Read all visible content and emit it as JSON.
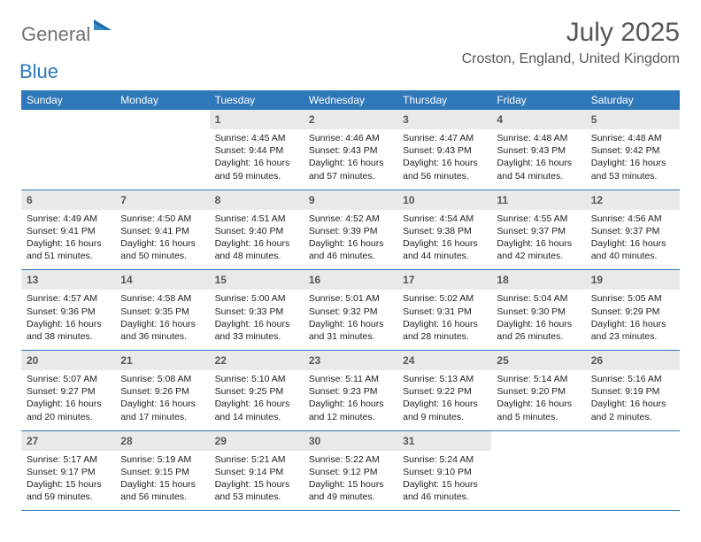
{
  "logo": {
    "word1": "General",
    "word2": "Blue",
    "tri_color": "#1f6bb0",
    "word1_color": "#6f7176",
    "word2_color": "#2e77b8"
  },
  "title": "July 2025",
  "location": "Croston, England, United Kingdom",
  "colors": {
    "header_bg": "#2e77b8",
    "daynum_bg": "#e9e9e9",
    "text": "#565656",
    "week_border": "#2e77b8"
  },
  "weekdays": [
    "Sunday",
    "Monday",
    "Tuesday",
    "Wednesday",
    "Thursday",
    "Friday",
    "Saturday"
  ],
  "weeks": [
    [
      null,
      null,
      {
        "n": "1",
        "sr": "Sunrise: 4:45 AM",
        "ss": "Sunset: 9:44 PM",
        "dl": "Daylight: 16 hours and 59 minutes."
      },
      {
        "n": "2",
        "sr": "Sunrise: 4:46 AM",
        "ss": "Sunset: 9:43 PM",
        "dl": "Daylight: 16 hours and 57 minutes."
      },
      {
        "n": "3",
        "sr": "Sunrise: 4:47 AM",
        "ss": "Sunset: 9:43 PM",
        "dl": "Daylight: 16 hours and 56 minutes."
      },
      {
        "n": "4",
        "sr": "Sunrise: 4:48 AM",
        "ss": "Sunset: 9:43 PM",
        "dl": "Daylight: 16 hours and 54 minutes."
      },
      {
        "n": "5",
        "sr": "Sunrise: 4:48 AM",
        "ss": "Sunset: 9:42 PM",
        "dl": "Daylight: 16 hours and 53 minutes."
      }
    ],
    [
      {
        "n": "6",
        "sr": "Sunrise: 4:49 AM",
        "ss": "Sunset: 9:41 PM",
        "dl": "Daylight: 16 hours and 51 minutes."
      },
      {
        "n": "7",
        "sr": "Sunrise: 4:50 AM",
        "ss": "Sunset: 9:41 PM",
        "dl": "Daylight: 16 hours and 50 minutes."
      },
      {
        "n": "8",
        "sr": "Sunrise: 4:51 AM",
        "ss": "Sunset: 9:40 PM",
        "dl": "Daylight: 16 hours and 48 minutes."
      },
      {
        "n": "9",
        "sr": "Sunrise: 4:52 AM",
        "ss": "Sunset: 9:39 PM",
        "dl": "Daylight: 16 hours and 46 minutes."
      },
      {
        "n": "10",
        "sr": "Sunrise: 4:54 AM",
        "ss": "Sunset: 9:38 PM",
        "dl": "Daylight: 16 hours and 44 minutes."
      },
      {
        "n": "11",
        "sr": "Sunrise: 4:55 AM",
        "ss": "Sunset: 9:37 PM",
        "dl": "Daylight: 16 hours and 42 minutes."
      },
      {
        "n": "12",
        "sr": "Sunrise: 4:56 AM",
        "ss": "Sunset: 9:37 PM",
        "dl": "Daylight: 16 hours and 40 minutes."
      }
    ],
    [
      {
        "n": "13",
        "sr": "Sunrise: 4:57 AM",
        "ss": "Sunset: 9:36 PM",
        "dl": "Daylight: 16 hours and 38 minutes."
      },
      {
        "n": "14",
        "sr": "Sunrise: 4:58 AM",
        "ss": "Sunset: 9:35 PM",
        "dl": "Daylight: 16 hours and 36 minutes."
      },
      {
        "n": "15",
        "sr": "Sunrise: 5:00 AM",
        "ss": "Sunset: 9:33 PM",
        "dl": "Daylight: 16 hours and 33 minutes."
      },
      {
        "n": "16",
        "sr": "Sunrise: 5:01 AM",
        "ss": "Sunset: 9:32 PM",
        "dl": "Daylight: 16 hours and 31 minutes."
      },
      {
        "n": "17",
        "sr": "Sunrise: 5:02 AM",
        "ss": "Sunset: 9:31 PM",
        "dl": "Daylight: 16 hours and 28 minutes."
      },
      {
        "n": "18",
        "sr": "Sunrise: 5:04 AM",
        "ss": "Sunset: 9:30 PM",
        "dl": "Daylight: 16 hours and 26 minutes."
      },
      {
        "n": "19",
        "sr": "Sunrise: 5:05 AM",
        "ss": "Sunset: 9:29 PM",
        "dl": "Daylight: 16 hours and 23 minutes."
      }
    ],
    [
      {
        "n": "20",
        "sr": "Sunrise: 5:07 AM",
        "ss": "Sunset: 9:27 PM",
        "dl": "Daylight: 16 hours and 20 minutes."
      },
      {
        "n": "21",
        "sr": "Sunrise: 5:08 AM",
        "ss": "Sunset: 9:26 PM",
        "dl": "Daylight: 16 hours and 17 minutes."
      },
      {
        "n": "22",
        "sr": "Sunrise: 5:10 AM",
        "ss": "Sunset: 9:25 PM",
        "dl": "Daylight: 16 hours and 14 minutes."
      },
      {
        "n": "23",
        "sr": "Sunrise: 5:11 AM",
        "ss": "Sunset: 9:23 PM",
        "dl": "Daylight: 16 hours and 12 minutes."
      },
      {
        "n": "24",
        "sr": "Sunrise: 5:13 AM",
        "ss": "Sunset: 9:22 PM",
        "dl": "Daylight: 16 hours and 9 minutes."
      },
      {
        "n": "25",
        "sr": "Sunrise: 5:14 AM",
        "ss": "Sunset: 9:20 PM",
        "dl": "Daylight: 16 hours and 5 minutes."
      },
      {
        "n": "26",
        "sr": "Sunrise: 5:16 AM",
        "ss": "Sunset: 9:19 PM",
        "dl": "Daylight: 16 hours and 2 minutes."
      }
    ],
    [
      {
        "n": "27",
        "sr": "Sunrise: 5:17 AM",
        "ss": "Sunset: 9:17 PM",
        "dl": "Daylight: 15 hours and 59 minutes."
      },
      {
        "n": "28",
        "sr": "Sunrise: 5:19 AM",
        "ss": "Sunset: 9:15 PM",
        "dl": "Daylight: 15 hours and 56 minutes."
      },
      {
        "n": "29",
        "sr": "Sunrise: 5:21 AM",
        "ss": "Sunset: 9:14 PM",
        "dl": "Daylight: 15 hours and 53 minutes."
      },
      {
        "n": "30",
        "sr": "Sunrise: 5:22 AM",
        "ss": "Sunset: 9:12 PM",
        "dl": "Daylight: 15 hours and 49 minutes."
      },
      {
        "n": "31",
        "sr": "Sunrise: 5:24 AM",
        "ss": "Sunset: 9:10 PM",
        "dl": "Daylight: 15 hours and 46 minutes."
      },
      null,
      null
    ]
  ]
}
